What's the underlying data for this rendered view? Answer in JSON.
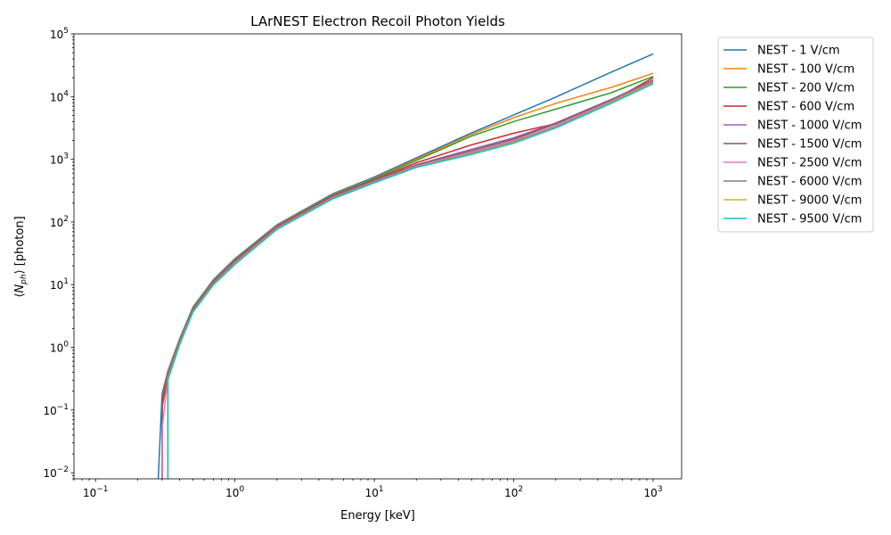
{
  "chart_data": {
    "type": "line",
    "title": "LArNEST Electron Recoil Photon Yields",
    "xlabel": "Energy [keV]",
    "ylabel": "⟨N_ph⟩ [photon]",
    "xscale": "log",
    "yscale": "log",
    "xlim": [
      0.07,
      1600
    ],
    "ylim": [
      0.008,
      100000
    ],
    "grid": false,
    "legend_position": "outside-right",
    "x_ticks": [
      {
        "value": 0.1,
        "base": "10",
        "exp": "−1"
      },
      {
        "value": 1,
        "base": "10",
        "exp": "0"
      },
      {
        "value": 10,
        "base": "10",
        "exp": "1"
      },
      {
        "value": 100,
        "base": "10",
        "exp": "2"
      },
      {
        "value": 1000,
        "base": "10",
        "exp": "3"
      }
    ],
    "y_ticks": [
      {
        "value": 0.01,
        "base": "10",
        "exp": "−2"
      },
      {
        "value": 0.1,
        "base": "10",
        "exp": "−1"
      },
      {
        "value": 1,
        "base": "10",
        "exp": "0"
      },
      {
        "value": 10,
        "base": "10",
        "exp": "1"
      },
      {
        "value": 100,
        "base": "10",
        "exp": "2"
      },
      {
        "value": 1000,
        "base": "10",
        "exp": "3"
      },
      {
        "value": 10000,
        "base": "10",
        "exp": "4"
      },
      {
        "value": 100000,
        "base": "10",
        "exp": "5"
      }
    ],
    "x": [
      0.28,
      0.3,
      0.33,
      0.4,
      0.5,
      0.7,
      1,
      2,
      5,
      10,
      20,
      50,
      100,
      200,
      500,
      1000
    ],
    "series": [
      {
        "name": "NEST - 1 V/cm",
        "color": "#1f77b4",
        "values": [
          0.006,
          0.18,
          0.42,
          1.35,
          4.4,
          12,
          26,
          90,
          280,
          520,
          1050,
          2650,
          5100,
          9800,
          24500,
          48000
        ]
      },
      {
        "name": "NEST - 100 V/cm",
        "color": "#ff7f0e",
        "values": [
          null,
          0.16,
          0.39,
          1.3,
          4.2,
          11.5,
          25,
          87,
          270,
          500,
          1000,
          2500,
          4600,
          7800,
          14000,
          23500
        ]
      },
      {
        "name": "NEST - 200 V/cm",
        "color": "#2ca02c",
        "values": [
          null,
          0.15,
          0.37,
          1.25,
          4.1,
          11.2,
          24.5,
          85,
          265,
          490,
          960,
          2350,
          4000,
          6300,
          11500,
          21000
        ]
      },
      {
        "name": "NEST - 600 V/cm",
        "color": "#d62728",
        "values": [
          null,
          0.14,
          0.36,
          1.22,
          4.0,
          11.0,
          24,
          84,
          260,
          470,
          880,
          1700,
          2600,
          3700,
          8500,
          20000
        ]
      },
      {
        "name": "NEST - 1000 V/cm",
        "color": "#9467bd",
        "values": [
          null,
          0.12,
          0.35,
          1.2,
          3.9,
          10.8,
          23.5,
          82,
          255,
          460,
          820,
          1450,
          2200,
          3800,
          9000,
          18500
        ]
      },
      {
        "name": "NEST - 1500 V/cm",
        "color": "#8c564b",
        "values": [
          null,
          0.11,
          0.34,
          1.18,
          3.85,
          10.6,
          23,
          81,
          250,
          450,
          800,
          1380,
          2100,
          3700,
          8800,
          18000
        ]
      },
      {
        "name": "NEST - 2500 V/cm",
        "color": "#e377c2",
        "values": [
          null,
          0.05,
          0.33,
          1.15,
          3.8,
          10.4,
          22.5,
          80,
          245,
          440,
          780,
          1320,
          2000,
          3500,
          8500,
          17500
        ]
      },
      {
        "name": "NEST - 6000 V/cm",
        "color": "#7f7f7f",
        "values": [
          null,
          null,
          0.32,
          1.12,
          3.75,
          10.2,
          22,
          78,
          240,
          430,
          760,
          1260,
          1900,
          3300,
          8200,
          17000
        ]
      },
      {
        "name": "NEST - 9000 V/cm",
        "color": "#bcbd22",
        "values": [
          null,
          null,
          0.31,
          1.1,
          3.7,
          10.0,
          21.5,
          77,
          235,
          425,
          750,
          1230,
          1850,
          3200,
          8000,
          16500
        ]
      },
      {
        "name": "NEST - 9500 V/cm",
        "color": "#17becf",
        "values": [
          null,
          null,
          0.3,
          1.08,
          3.65,
          9.9,
          21,
          76,
          232,
          420,
          740,
          1200,
          1800,
          3150,
          7800,
          16000
        ]
      }
    ]
  }
}
